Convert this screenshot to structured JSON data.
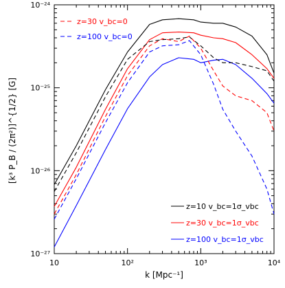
{
  "chart_data": {
    "type": "line",
    "xlabel": "k [Mpc⁻¹]",
    "ylabel": "[k³ P_B / (2π²)]^{1/2} [G]",
    "xscale": "log",
    "yscale": "log",
    "xlim": [
      10,
      10000
    ],
    "ylim": [
      1e-27,
      1e-24
    ],
    "x_tick_labels": [
      "10",
      "10²",
      "10³",
      "10⁴"
    ],
    "y_tick_labels": [
      "10⁻²⁷",
      "10⁻²⁶",
      "10⁻²⁵",
      "10⁻²⁴"
    ],
    "legend_top": [
      "z=30   v_bc=0",
      "z=100   v_bc=0"
    ],
    "legend_bottom": [
      "z=10   v_bc=1σ_vbc",
      "z=30   v_bc=1σ_vbc",
      "z=100   v_bc=1σ_vbc"
    ],
    "series": [
      {
        "name": "z=10   v_bc=1σ_vbc",
        "color": "#000000",
        "dash": "solid",
        "points": [
          [
            10,
            6.8e-27
          ],
          [
            20,
            2e-26
          ],
          [
            50,
            9.5e-26
          ],
          [
            100,
            2.7e-25
          ],
          [
            200,
            5.8e-25
          ],
          [
            300,
            6.6e-25
          ],
          [
            500,
            6.8e-25
          ],
          [
            800,
            6.6e-25
          ],
          [
            1000,
            6.2e-25
          ],
          [
            1500,
            6e-25
          ],
          [
            2000,
            6e-25
          ],
          [
            3000,
            5.4e-25
          ],
          [
            5000,
            4.2e-25
          ],
          [
            8000,
            2.5e-25
          ],
          [
            10000,
            1.5e-25
          ]
        ]
      },
      {
        "name": "z=30   v_bc=1σ_vbc",
        "color": "#ff0000",
        "dash": "solid",
        "points": [
          [
            10,
            3.7e-27
          ],
          [
            20,
            1.1e-26
          ],
          [
            50,
            5.5e-26
          ],
          [
            100,
            1.7e-25
          ],
          [
            200,
            3.8e-25
          ],
          [
            300,
            4.6e-25
          ],
          [
            500,
            4.7e-25
          ],
          [
            800,
            4.6e-25
          ],
          [
            1000,
            4.3e-25
          ],
          [
            1500,
            4e-25
          ],
          [
            2000,
            3.9e-25
          ],
          [
            3000,
            3.5e-25
          ],
          [
            5000,
            2.5e-25
          ],
          [
            8000,
            1.7e-25
          ],
          [
            10000,
            1.3e-25
          ]
        ]
      },
      {
        "name": "z=100   v_bc=1σ_vbc",
        "color": "#0000ff",
        "dash": "solid",
        "points": [
          [
            10,
            1.2e-27
          ],
          [
            20,
            3.8e-27
          ],
          [
            50,
            1.8e-26
          ],
          [
            100,
            5.6e-26
          ],
          [
            200,
            1.35e-25
          ],
          [
            300,
            1.9e-25
          ],
          [
            500,
            2.3e-25
          ],
          [
            800,
            2.2e-25
          ],
          [
            1000,
            2e-25
          ],
          [
            1500,
            2.15e-25
          ],
          [
            2000,
            2.2e-25
          ],
          [
            3000,
            1.9e-25
          ],
          [
            5000,
            1.3e-25
          ],
          [
            8000,
            8.5e-26
          ],
          [
            10000,
            6.5e-26
          ]
        ]
      },
      {
        "name": "z=10   v_bc=0",
        "color": "#000000",
        "dash": "dashed",
        "points": [
          [
            10,
            5.6e-27
          ],
          [
            20,
            1.65e-26
          ],
          [
            50,
            7.8e-26
          ],
          [
            100,
            2.2e-25
          ],
          [
            200,
            3.6e-25
          ],
          [
            300,
            3.8e-25
          ],
          [
            500,
            3.9e-25
          ],
          [
            700,
            4.1e-25
          ],
          [
            1000,
            3.2e-25
          ],
          [
            1500,
            2.3e-25
          ],
          [
            2000,
            2e-25
          ],
          [
            3000,
            2e-25
          ],
          [
            5000,
            1.8e-25
          ],
          [
            8000,
            1.6e-25
          ],
          [
            10000,
            1.2e-25
          ]
        ]
      },
      {
        "name": "z=30   v_bc=0",
        "color": "#ff0000",
        "dash": "dashed",
        "points": [
          [
            10,
            3e-27
          ],
          [
            20,
            9e-27
          ],
          [
            50,
            4.5e-26
          ],
          [
            100,
            1.4e-25
          ],
          [
            200,
            3.2e-25
          ],
          [
            300,
            3.9e-25
          ],
          [
            500,
            3.6e-25
          ],
          [
            700,
            4.2e-25
          ],
          [
            1000,
            3e-25
          ],
          [
            1500,
            1.6e-25
          ],
          [
            2000,
            1.05e-25
          ],
          [
            3000,
            8e-26
          ],
          [
            5000,
            7e-26
          ],
          [
            8000,
            5e-26
          ],
          [
            10000,
            3e-26
          ]
        ]
      },
      {
        "name": "z=100   v_bc=0",
        "color": "#0000ff",
        "dash": "dashed",
        "points": [
          [
            10,
            2.6e-27
          ],
          [
            20,
            8e-27
          ],
          [
            50,
            3.8e-26
          ],
          [
            100,
            1.15e-25
          ],
          [
            200,
            2.7e-25
          ],
          [
            300,
            3.2e-25
          ],
          [
            500,
            3.3e-25
          ],
          [
            700,
            3.7e-25
          ],
          [
            1000,
            2.5e-25
          ],
          [
            1500,
            1.1e-25
          ],
          [
            2000,
            5.5e-26
          ],
          [
            3000,
            3e-26
          ],
          [
            5000,
            1.5e-26
          ],
          [
            8000,
            6e-27
          ],
          [
            10000,
            3e-27
          ]
        ]
      }
    ]
  }
}
